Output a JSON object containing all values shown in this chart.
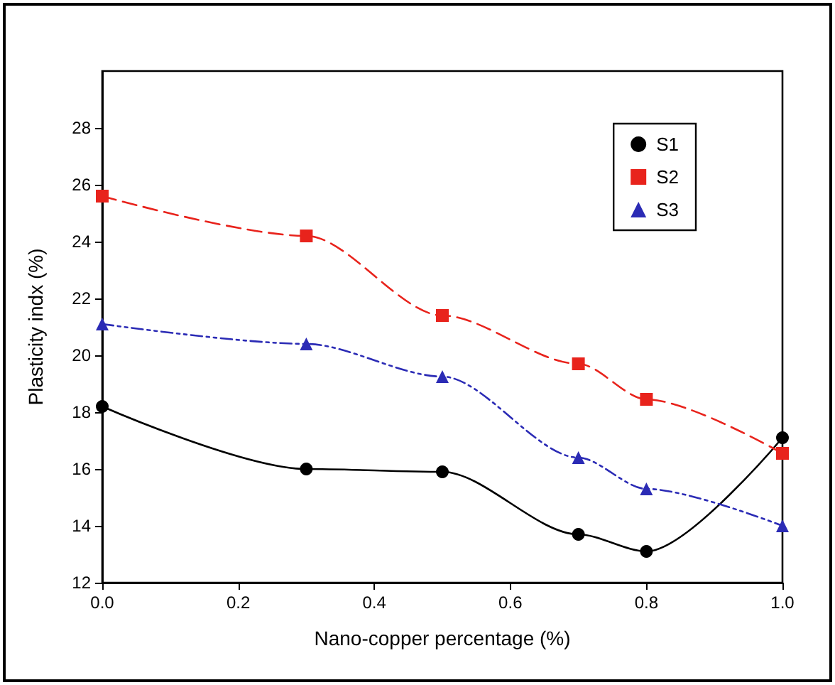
{
  "chart_data": {
    "type": "line",
    "xlabel": "Nano-copper percentage (%)",
    "ylabel": "Plasticity indx (%)",
    "x": [
      0.0,
      0.3,
      0.5,
      0.7,
      0.8,
      1.0
    ],
    "series": [
      {
        "name": "S1",
        "color": "#000000",
        "marker": "circle",
        "line_style": "solid",
        "values": [
          18.2,
          16.0,
          15.9,
          13.7,
          13.1,
          17.1
        ]
      },
      {
        "name": "S2",
        "color": "#e8231c",
        "marker": "square",
        "line_style": "dashed",
        "values": [
          25.6,
          24.2,
          21.4,
          19.7,
          18.45,
          16.55
        ]
      },
      {
        "name": "S3",
        "color": "#2b2bb5",
        "marker": "triangle",
        "line_style": "dotted",
        "values": [
          21.1,
          20.4,
          19.25,
          16.4,
          15.3,
          14.0
        ]
      }
    ],
    "xlim": [
      0,
      1
    ],
    "xticks": [
      {
        "value": 0,
        "label": "0.0"
      },
      0.2,
      0.4,
      0.6,
      0.8,
      {
        "value": 1,
        "label": "1.0"
      }
    ],
    "ylim": [
      12,
      30
    ],
    "yticks": [
      12,
      14,
      16,
      18,
      20,
      22,
      24,
      26,
      28
    ],
    "grid": false,
    "legend": "top right"
  }
}
